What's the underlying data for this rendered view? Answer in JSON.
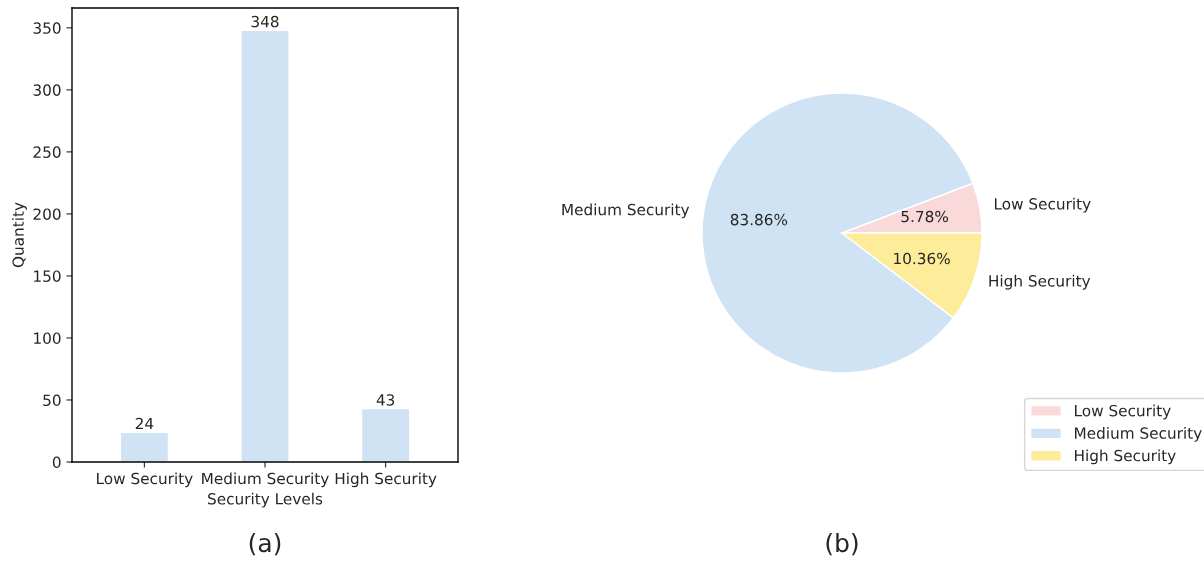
{
  "chart_data": [
    {
      "type": "bar",
      "xlabel": "Security Levels",
      "ylabel": "Quantity",
      "categories": [
        "Low Security",
        "Medium Security",
        "High Security"
      ],
      "values": [
        24,
        348,
        43
      ],
      "color": "#cfe3f4",
      "ylim": [
        0,
        366
      ],
      "yticks": [
        0,
        50,
        100,
        150,
        200,
        250,
        300,
        350
      ],
      "data_labels": true,
      "grid": false,
      "annotations": [
        "(a)"
      ]
    },
    {
      "type": "pie",
      "categories": [
        "Low Security",
        "Medium Security",
        "High Security"
      ],
      "values": [
        5.78,
        83.86,
        10.36
      ],
      "value_labels": [
        "5.78%",
        "83.86%",
        "10.36%"
      ],
      "colors": [
        "#f9d9da",
        "#cfe3f4",
        "#fdec9a"
      ],
      "legend": "bottom right",
      "annotations": [
        "(b)"
      ]
    }
  ]
}
